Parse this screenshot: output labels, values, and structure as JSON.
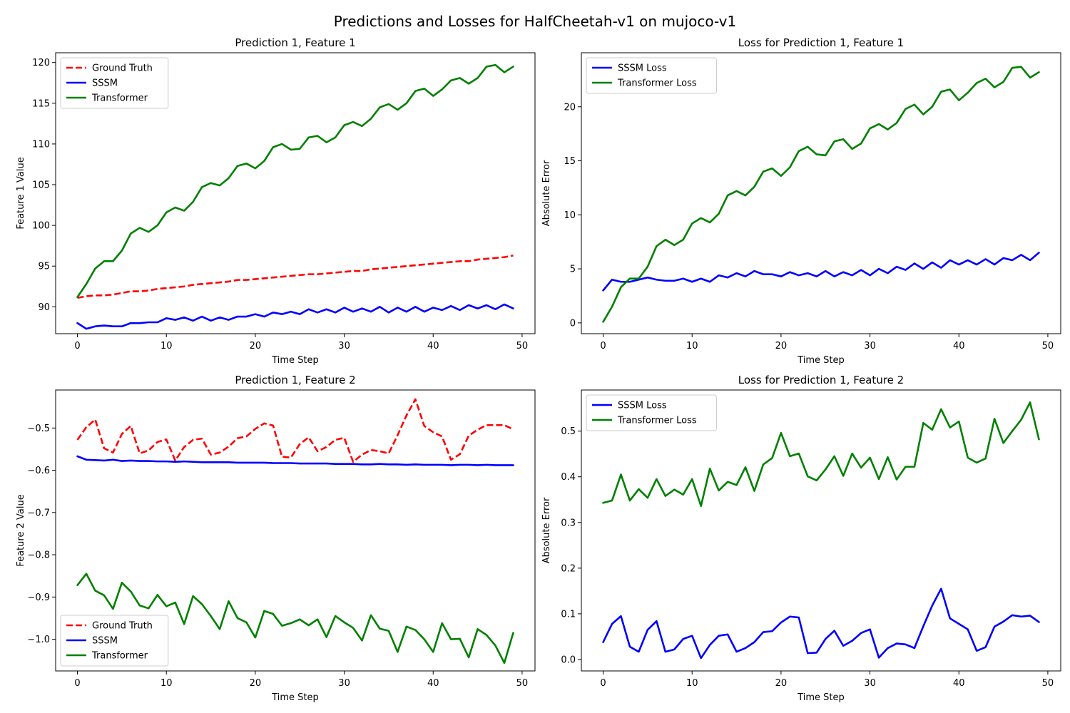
{
  "figure": {
    "suptitle": "Predictions and Losses for HalfCheetah-v1 on mujoco-v1"
  },
  "colors": {
    "ground_truth": "#ff0000",
    "sssm": "#0000ff",
    "transformer": "#008000"
  },
  "chart_data": [
    {
      "type": "line",
      "title": "Prediction 1, Feature 1",
      "xlabel": "Time Step",
      "ylabel": "Feature 1 Value",
      "xlim": [
        -2.45,
        51.45
      ],
      "ylim": [
        86.7,
        121.2
      ],
      "xticks": [
        0,
        10,
        20,
        30,
        40,
        50
      ],
      "yticks": [
        90,
        95,
        100,
        105,
        110,
        115,
        120
      ],
      "legend": "top-left",
      "series": [
        {
          "name": "Ground Truth",
          "color": "#ff0000",
          "dashed": true,
          "values": [
            91.1,
            91.3,
            91.4,
            91.4,
            91.5,
            91.7,
            91.9,
            91.9,
            92.0,
            92.2,
            92.3,
            92.4,
            92.5,
            92.7,
            92.8,
            92.9,
            93.0,
            93.1,
            93.3,
            93.3,
            93.4,
            93.5,
            93.6,
            93.7,
            93.8,
            93.9,
            94.0,
            94.0,
            94.1,
            94.2,
            94.3,
            94.4,
            94.4,
            94.6,
            94.7,
            94.8,
            94.9,
            95.0,
            95.1,
            95.2,
            95.3,
            95.4,
            95.5,
            95.6,
            95.6,
            95.8,
            95.9,
            96.0,
            96.1,
            96.3
          ]
        },
        {
          "name": "SSSM",
          "color": "#0000ff",
          "dashed": false,
          "values": [
            88.0,
            87.3,
            87.6,
            87.7,
            87.6,
            87.6,
            88.0,
            88.0,
            88.1,
            88.1,
            88.6,
            88.4,
            88.7,
            88.3,
            88.8,
            88.3,
            88.7,
            88.4,
            88.8,
            88.8,
            89.1,
            88.8,
            89.3,
            89.1,
            89.4,
            89.1,
            89.7,
            89.3,
            89.7,
            89.3,
            89.9,
            89.4,
            89.8,
            89.4,
            90.0,
            89.3,
            89.9,
            89.4,
            90.0,
            89.4,
            89.9,
            89.6,
            90.1,
            89.6,
            90.2,
            89.8,
            90.2,
            89.7,
            90.3,
            89.8
          ]
        },
        {
          "name": "Transformer",
          "color": "#008000",
          "dashed": false,
          "values": [
            91.2,
            92.8,
            94.7,
            95.6,
            95.6,
            96.9,
            99.0,
            99.7,
            99.2,
            100.0,
            101.6,
            102.2,
            101.8,
            102.9,
            104.7,
            105.2,
            104.9,
            105.8,
            107.3,
            107.6,
            107.0,
            107.9,
            109.6,
            110.0,
            109.3,
            109.4,
            110.8,
            111.0,
            110.2,
            110.8,
            112.3,
            112.7,
            112.2,
            113.1,
            114.5,
            114.9,
            114.2,
            115.0,
            116.5,
            116.8,
            115.9,
            116.7,
            117.8,
            118.1,
            117.4,
            118.1,
            119.5,
            119.7,
            118.8,
            119.5
          ]
        }
      ]
    },
    {
      "type": "line",
      "title": "Loss for Prediction 1, Feature 1",
      "xlabel": "Time Step",
      "ylabel": "Absolute Error",
      "xlim": [
        -2.45,
        51.45
      ],
      "ylim": [
        -1.0,
        25.0
      ],
      "xticks": [
        0,
        10,
        20,
        30,
        40,
        50
      ],
      "yticks": [
        0,
        5,
        10,
        15,
        20
      ],
      "legend": "top-left",
      "series": [
        {
          "name": "SSSM Loss",
          "color": "#0000ff",
          "dashed": false,
          "values": [
            3.0,
            4.0,
            3.8,
            3.8,
            4.0,
            4.2,
            4.0,
            3.9,
            3.9,
            4.1,
            3.8,
            4.1,
            3.8,
            4.4,
            4.2,
            4.6,
            4.3,
            4.8,
            4.5,
            4.5,
            4.3,
            4.7,
            4.4,
            4.6,
            4.3,
            4.8,
            4.3,
            4.7,
            4.4,
            4.9,
            4.4,
            5.0,
            4.6,
            5.2,
            4.9,
            5.5,
            5.0,
            5.6,
            5.1,
            5.8,
            5.4,
            5.8,
            5.4,
            5.9,
            5.4,
            6.0,
            5.8,
            6.3,
            5.8,
            6.5
          ]
        },
        {
          "name": "Transformer Loss",
          "color": "#008000",
          "dashed": false,
          "values": [
            0.1,
            1.5,
            3.3,
            4.1,
            4.1,
            5.2,
            7.1,
            7.7,
            7.2,
            7.7,
            9.2,
            9.7,
            9.3,
            10.1,
            11.8,
            12.2,
            11.8,
            12.6,
            14.0,
            14.3,
            13.6,
            14.4,
            15.9,
            16.3,
            15.6,
            15.5,
            16.8,
            17.0,
            16.1,
            16.6,
            18.0,
            18.4,
            17.9,
            18.5,
            19.8,
            20.2,
            19.3,
            20.0,
            21.4,
            21.6,
            20.6,
            21.3,
            22.2,
            22.6,
            21.8,
            22.3,
            23.6,
            23.7,
            22.7,
            23.2
          ]
        }
      ]
    },
    {
      "type": "line",
      "title": "Prediction 1, Feature 2",
      "xlabel": "Time Step",
      "ylabel": "Feature 2 Value",
      "xlim": [
        -2.45,
        51.45
      ],
      "ylim": [
        -1.075,
        -0.41
      ],
      "xticks": [
        0,
        10,
        20,
        30,
        40,
        50
      ],
      "yticks": [
        -1.0,
        -0.9,
        -0.8,
        -0.7,
        -0.6,
        -0.5
      ],
      "legend": "bottom-left",
      "series": [
        {
          "name": "Ground Truth",
          "color": "#ff0000",
          "dashed": true,
          "values": [
            -0.528,
            -0.498,
            -0.48,
            -0.548,
            -0.558,
            -0.514,
            -0.495,
            -0.56,
            -0.553,
            -0.533,
            -0.527,
            -0.577,
            -0.545,
            -0.528,
            -0.525,
            -0.563,
            -0.558,
            -0.544,
            -0.524,
            -0.52,
            -0.502,
            -0.489,
            -0.494,
            -0.568,
            -0.57,
            -0.538,
            -0.522,
            -0.555,
            -0.545,
            -0.528,
            -0.523,
            -0.58,
            -0.563,
            -0.552,
            -0.555,
            -0.56,
            -0.517,
            -0.47,
            -0.432,
            -0.495,
            -0.51,
            -0.52,
            -0.575,
            -0.562,
            -0.518,
            -0.504,
            -0.493,
            -0.493,
            -0.493,
            -0.503
          ]
        },
        {
          "name": "SSSM",
          "color": "#0000ff",
          "dashed": false,
          "values": [
            -0.567,
            -0.575,
            -0.576,
            -0.577,
            -0.575,
            -0.578,
            -0.577,
            -0.578,
            -0.578,
            -0.579,
            -0.579,
            -0.58,
            -0.579,
            -0.58,
            -0.581,
            -0.581,
            -0.581,
            -0.581,
            -0.582,
            -0.582,
            -0.582,
            -0.582,
            -0.583,
            -0.583,
            -0.583,
            -0.584,
            -0.584,
            -0.584,
            -0.584,
            -0.585,
            -0.585,
            -0.585,
            -0.586,
            -0.586,
            -0.585,
            -0.586,
            -0.586,
            -0.587,
            -0.586,
            -0.587,
            -0.587,
            -0.587,
            -0.588,
            -0.587,
            -0.587,
            -0.588,
            -0.587,
            -0.588,
            -0.588,
            -0.588
          ]
        },
        {
          "name": "Transformer",
          "color": "#008000",
          "dashed": false,
          "values": [
            -0.872,
            -0.845,
            -0.885,
            -0.896,
            -0.928,
            -0.866,
            -0.887,
            -0.92,
            -0.927,
            -0.895,
            -0.922,
            -0.913,
            -0.964,
            -0.898,
            -0.917,
            -0.945,
            -0.976,
            -0.91,
            -0.95,
            -0.96,
            -0.996,
            -0.933,
            -0.94,
            -0.968,
            -0.962,
            -0.953,
            -0.967,
            -0.953,
            -0.995,
            -0.945,
            -0.96,
            -0.973,
            -1.003,
            -0.943,
            -0.975,
            -0.98,
            -1.03,
            -0.97,
            -0.978,
            -1.0,
            -1.03,
            -0.962,
            -1.0,
            -0.999,
            -1.043,
            -0.976,
            -0.99,
            -1.015,
            -1.056,
            -0.985
          ]
        }
      ]
    },
    {
      "type": "line",
      "title": "Loss for Prediction 1, Feature 2",
      "xlabel": "Time Step",
      "ylabel": "Absolute Error",
      "xlim": [
        -2.45,
        51.45
      ],
      "ylim": [
        -0.025,
        0.59
      ],
      "xticks": [
        0,
        10,
        20,
        30,
        40,
        50
      ],
      "yticks": [
        0.0,
        0.1,
        0.2,
        0.3,
        0.4,
        0.5
      ],
      "legend": "top-left",
      "series": [
        {
          "name": "SSSM Loss",
          "color": "#0000ff",
          "dashed": false,
          "values": [
            0.038,
            0.078,
            0.095,
            0.028,
            0.017,
            0.065,
            0.084,
            0.017,
            0.022,
            0.045,
            0.052,
            0.003,
            0.032,
            0.052,
            0.055,
            0.017,
            0.025,
            0.038,
            0.06,
            0.062,
            0.081,
            0.094,
            0.092,
            0.014,
            0.015,
            0.045,
            0.063,
            0.03,
            0.041,
            0.058,
            0.066,
            0.004,
            0.025,
            0.035,
            0.033,
            0.025,
            0.073,
            0.118,
            0.155,
            0.09,
            0.078,
            0.066,
            0.019,
            0.027,
            0.072,
            0.083,
            0.097,
            0.094,
            0.096,
            0.082
          ]
        },
        {
          "name": "Transformer Loss",
          "color": "#008000",
          "dashed": false,
          "values": [
            0.343,
            0.348,
            0.405,
            0.348,
            0.373,
            0.354,
            0.395,
            0.358,
            0.372,
            0.361,
            0.395,
            0.336,
            0.418,
            0.37,
            0.389,
            0.382,
            0.421,
            0.369,
            0.427,
            0.441,
            0.496,
            0.445,
            0.451,
            0.401,
            0.392,
            0.416,
            0.445,
            0.402,
            0.451,
            0.42,
            0.442,
            0.395,
            0.443,
            0.394,
            0.422,
            0.422,
            0.518,
            0.503,
            0.548,
            0.508,
            0.521,
            0.442,
            0.431,
            0.44,
            0.527,
            0.474,
            0.5,
            0.525,
            0.563,
            0.482
          ]
        }
      ]
    }
  ]
}
